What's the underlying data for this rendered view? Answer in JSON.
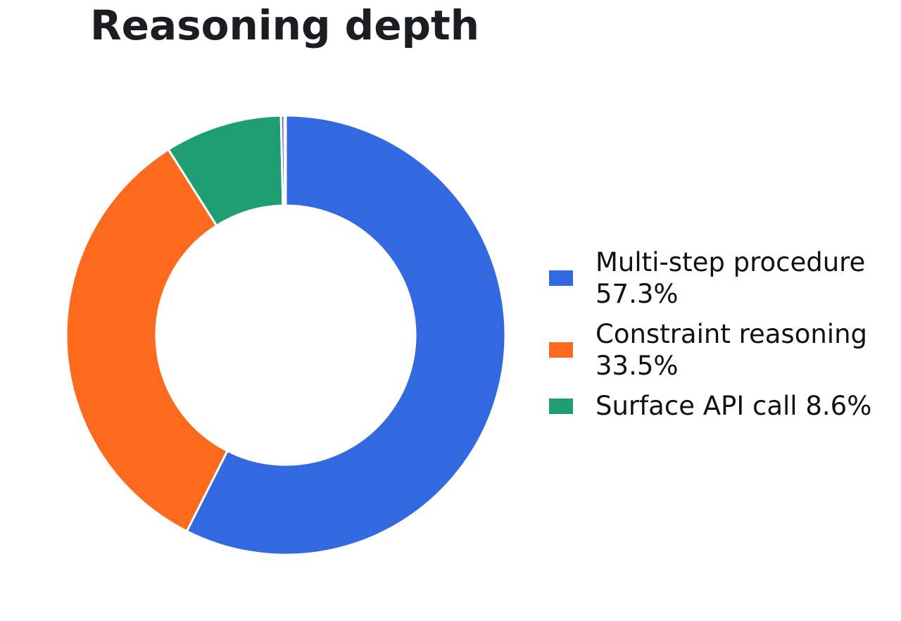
{
  "chart_data": {
    "type": "pie",
    "title": "Reasoning depth",
    "donut": true,
    "legend_position": "right",
    "series": [
      {
        "name": "Multi-step procedure",
        "label": "Multi-step procedure 57.3%",
        "value": 57.3,
        "color": "#3369e0"
      },
      {
        "name": "Constraint reasoning",
        "label": "Constraint reasoning 33.5%",
        "value": 33.5,
        "color": "#fd6a1e"
      },
      {
        "name": "Surface API call",
        "label": "Surface API call 8.6%",
        "value": 8.6,
        "color": "#1f9e74"
      },
      {
        "name": "",
        "label": "",
        "value": 0.25,
        "color": "#7b4fd6"
      },
      {
        "name": "",
        "label": "",
        "value": 0.1,
        "color": "#3a3a8a"
      }
    ]
  }
}
